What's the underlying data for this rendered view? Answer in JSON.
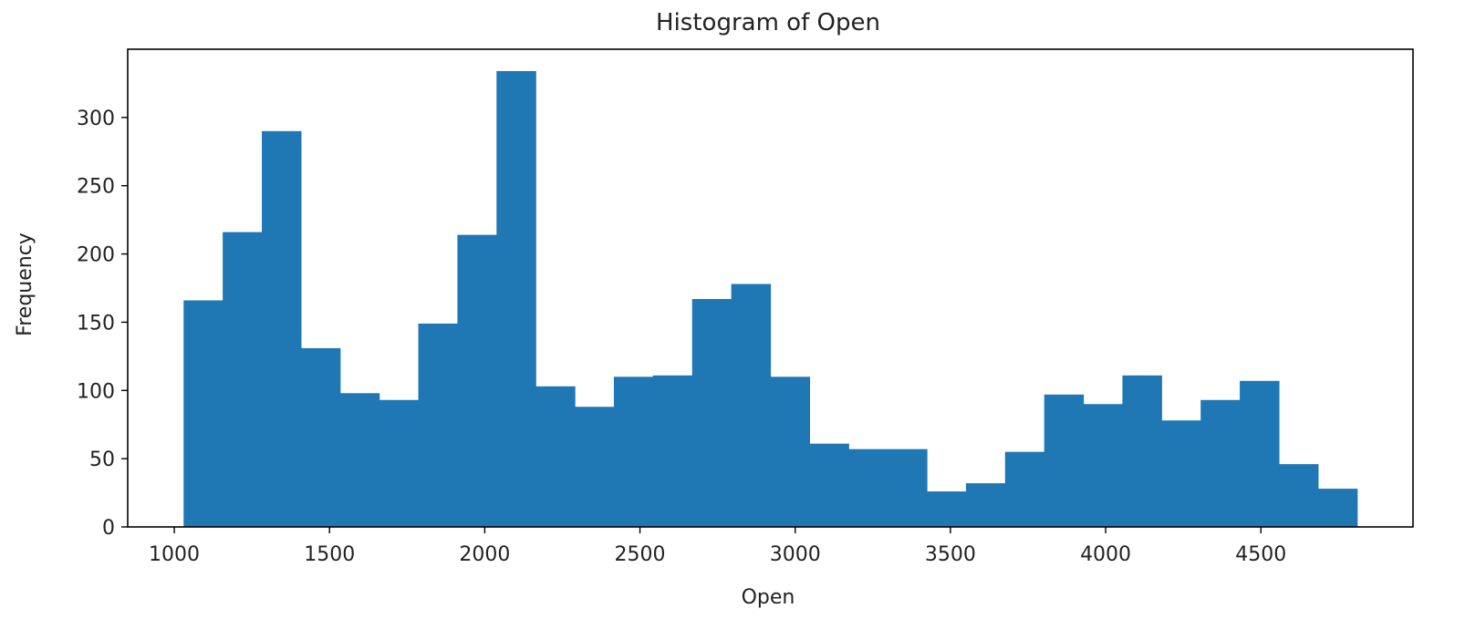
{
  "chart_data": {
    "type": "bar",
    "title": "Histogram of Open",
    "xlabel": "Open",
    "ylabel": "Frequency",
    "xlim": [
      850,
      4990
    ],
    "ylim": [
      0,
      350
    ],
    "xticks": [
      1000,
      1500,
      2000,
      2500,
      3000,
      3500,
      4000,
      4500
    ],
    "yticks": [
      0,
      50,
      100,
      150,
      200,
      250,
      300
    ],
    "grid": false,
    "legend": "none",
    "bar_color": "#1f77b4",
    "bins": {
      "edges": [
        1030,
        1156,
        1282,
        1408,
        1534,
        1660,
        1786,
        1912,
        2038,
        2164,
        2290,
        2416,
        2542,
        2668,
        2794,
        2920,
        3046,
        3172,
        3298,
        3424,
        3550,
        3676,
        3802,
        3928,
        4054,
        4180,
        4306,
        4432,
        4558,
        4684,
        4810
      ],
      "counts": [
        166,
        216,
        290,
        131,
        98,
        93,
        149,
        214,
        334,
        103,
        88,
        110,
        111,
        167,
        178,
        110,
        61,
        57,
        57,
        26,
        32,
        55,
        97,
        90,
        111,
        78,
        93,
        107,
        46,
        28
      ]
    }
  }
}
